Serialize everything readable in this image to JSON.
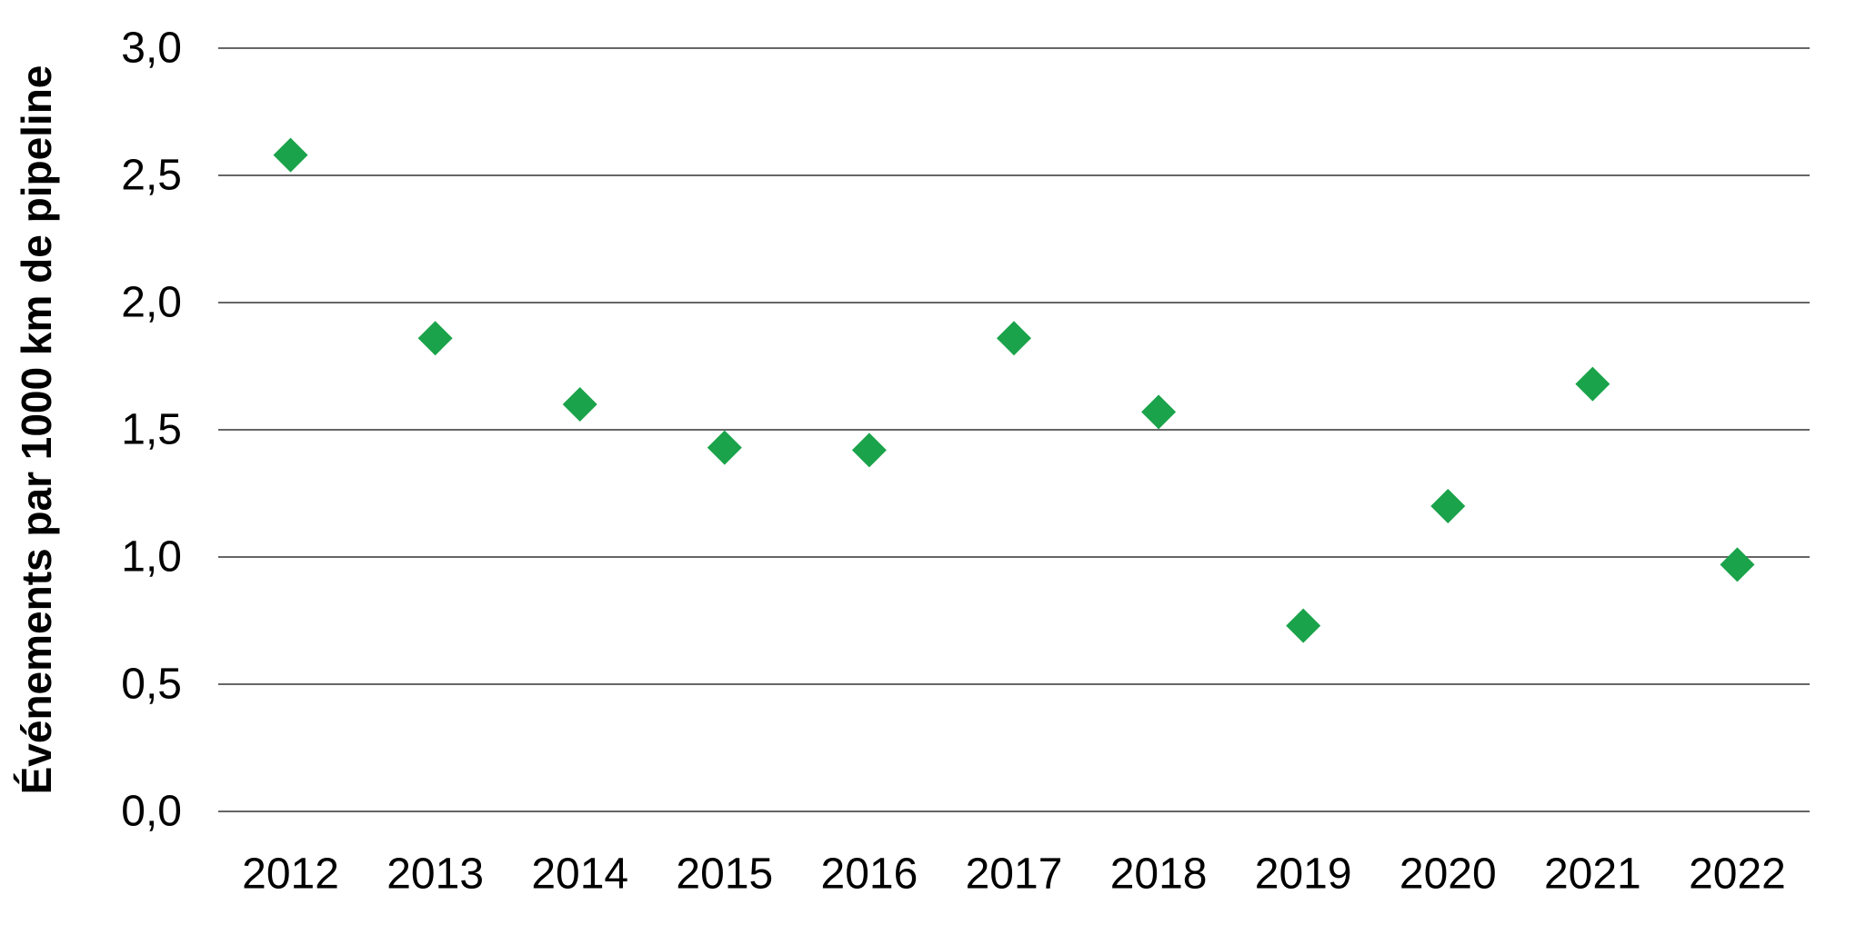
{
  "chart_data": {
    "type": "scatter",
    "title": "",
    "xlabel": "",
    "ylabel": "Événements par 1000 km de pipeline",
    "categories": [
      "2012",
      "2013",
      "2014",
      "2015",
      "2016",
      "2017",
      "2018",
      "2019",
      "2020",
      "2021",
      "2022"
    ],
    "series": [
      {
        "name": "Événements par 1000 km de pipeline",
        "values": [
          2.58,
          1.86,
          1.6,
          1.43,
          1.42,
          1.86,
          1.57,
          0.73,
          1.2,
          1.68,
          0.97
        ]
      }
    ],
    "ylim": [
      0.0,
      3.0
    ],
    "yticks": [
      {
        "value": 0.0,
        "label": "0,0"
      },
      {
        "value": 0.5,
        "label": "0,5"
      },
      {
        "value": 1.0,
        "label": "1,0"
      },
      {
        "value": 1.5,
        "label": "1,5"
      },
      {
        "value": 2.0,
        "label": "2,0"
      },
      {
        "value": 2.5,
        "label": "2,5"
      },
      {
        "value": 3.0,
        "label": "3,0"
      }
    ],
    "grid": "horizontal-only",
    "legend": "none",
    "marker": {
      "shape": "diamond",
      "color": "#1aa34a",
      "size": 38
    },
    "colors": {
      "gridline": "#666666",
      "text": "#000000",
      "background": "#ffffff"
    }
  }
}
